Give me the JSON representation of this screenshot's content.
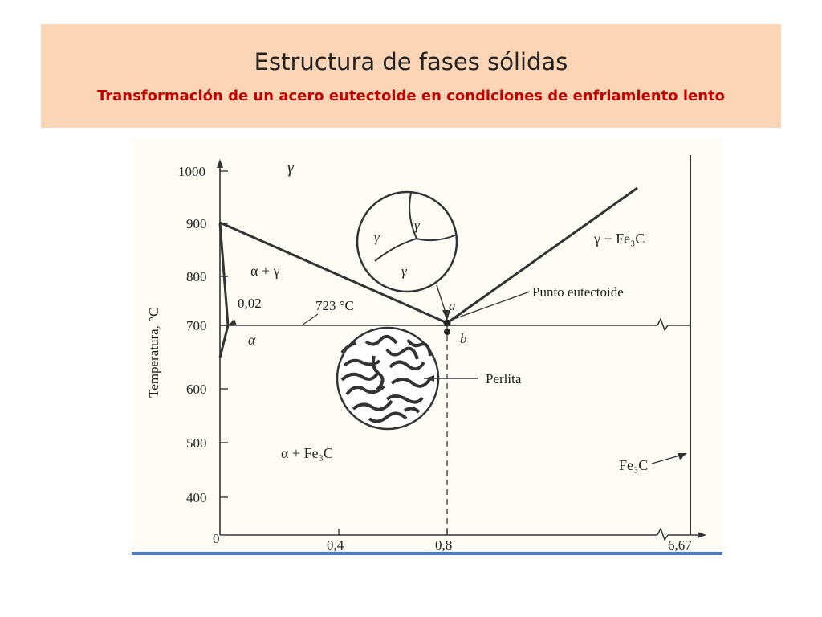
{
  "slide": {
    "title": "Estructura de fases sólidas",
    "subtitle": "Transformación de un acero eutectoide en condiciones de enfriamiento lento"
  },
  "diagram": {
    "y_ticks": [
      "1000",
      "900",
      "800",
      "700",
      "600",
      "500",
      "400",
      "0"
    ],
    "x_ticks": [
      "0,4",
      "0,8",
      "6,67"
    ],
    "y_axis_label": "Temperatura, °C",
    "phase_gamma": "γ",
    "phase_alpha_gamma": "α + γ",
    "phase_alpha": "α",
    "phase_gamma_fe3c": "γ + Fe₃C",
    "phase_alpha_fe3c": "α + Fe₃C",
    "fe3c": "Fe₃C",
    "label_002": "0,02",
    "label_723": "723 °C",
    "point_a": "a",
    "point_b": "b",
    "punto_eutectoide": "Punto eutectoide",
    "perlita": "Perlita",
    "grain_gamma_1": "γ",
    "grain_gamma_2": "γ",
    "grain_gamma_3": "γ"
  },
  "colors": {
    "title_bg": "#fbd5b5",
    "subtitle": "#c00000",
    "bottom_line": "#4a7bd0"
  }
}
